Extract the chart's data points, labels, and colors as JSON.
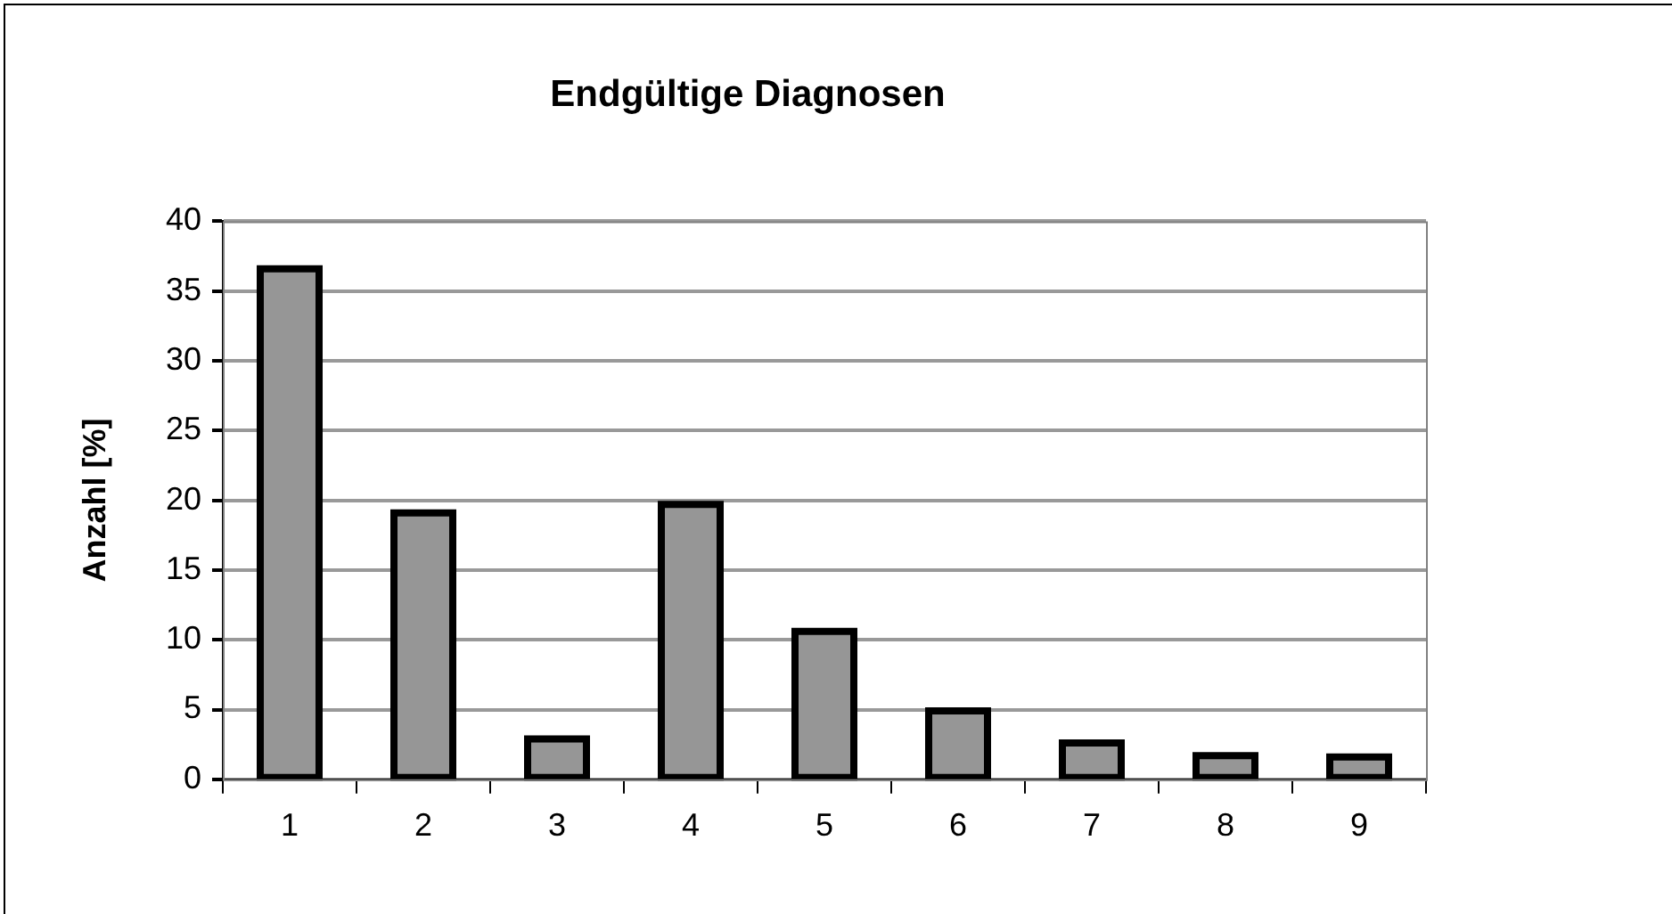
{
  "chart_data": {
    "type": "bar",
    "title": "Endgültige Diagnosen",
    "ylabel": "Anzahl [%]",
    "categories": [
      "1",
      "2",
      "3",
      "4",
      "5",
      "6",
      "7",
      "8",
      "9"
    ],
    "values": [
      36.6,
      19.1,
      2.9,
      19.7,
      10.6,
      4.9,
      2.6,
      1.7,
      1.6
    ],
    "color": "#969696",
    "ylim": [
      0,
      40
    ],
    "yticks": [
      0,
      5,
      10,
      15,
      20,
      25,
      30,
      35,
      40
    ],
    "grid": "y"
  }
}
